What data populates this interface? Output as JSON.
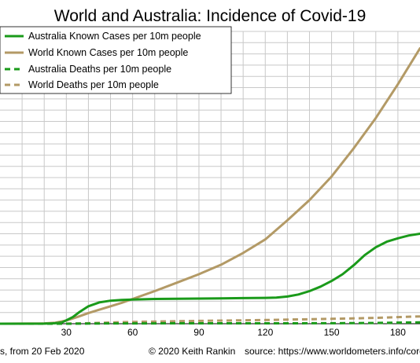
{
  "chart_data": {
    "type": "line",
    "title": "World and Australia: Incidence of Covid-19",
    "x_ticks": [
      30,
      60,
      90,
      120,
      150,
      180
    ],
    "xlim": [
      0,
      190
    ],
    "ylim": [
      0,
      260000
    ],
    "grid": true,
    "legend_position": "top-left",
    "footer": {
      "xlabel": "s, from 20 Feb 2020",
      "credit": "© 2020  Keith Rankin",
      "source": "source:  https://www.worldometers.info/coronav"
    },
    "series": [
      {
        "name": "Australia Known Cases per 10m people",
        "color": "#1a9a1a",
        "style": "solid",
        "x": [
          0,
          20,
          25,
          28,
          30,
          33,
          36,
          40,
          45,
          50,
          55,
          60,
          70,
          80,
          90,
          100,
          110,
          120,
          125,
          130,
          135,
          140,
          145,
          150,
          155,
          160,
          165,
          170,
          175,
          180,
          185,
          190
        ],
        "y": [
          0,
          80,
          400,
          1200,
          3000,
          6000,
          10500,
          15500,
          19000,
          20500,
          21200,
          21500,
          22000,
          22200,
          22400,
          22600,
          22800,
          23000,
          23300,
          24200,
          26000,
          29000,
          33000,
          38000,
          44000,
          52000,
          61000,
          68000,
          73000,
          76000,
          78500,
          80000
        ]
      },
      {
        "name": "World Known Cases per 10m people",
        "color": "#b39a66",
        "style": "solid",
        "x": [
          0,
          20,
          25,
          30,
          35,
          40,
          45,
          50,
          55,
          60,
          70,
          80,
          90,
          100,
          110,
          120,
          130,
          140,
          150,
          160,
          170,
          180,
          190
        ],
        "y": [
          0,
          300,
          900,
          2800,
          6000,
          9500,
          12500,
          15500,
          18500,
          22000,
          29000,
          36500,
          44000,
          52500,
          63000,
          75000,
          92000,
          110000,
          131000,
          156000,
          183000,
          213000,
          245000
        ]
      },
      {
        "name": "Australia Deaths per 10m people",
        "color": "#1a9a1a",
        "style": "dashed",
        "x": [
          0,
          30,
          45,
          60,
          90,
          120,
          150,
          170,
          180,
          190
        ],
        "y": [
          0,
          30,
          180,
          280,
          320,
          350,
          420,
          650,
          950,
          1200
        ]
      },
      {
        "name": "World Deaths per 10m people",
        "color": "#b39a66",
        "style": "dashed",
        "x": [
          0,
          30,
          40,
          50,
          60,
          90,
          120,
          150,
          170,
          180,
          190
        ],
        "y": [
          0,
          80,
          400,
          1100,
          1600,
          2500,
          3300,
          4300,
          5200,
          5900,
          6500
        ]
      }
    ]
  }
}
